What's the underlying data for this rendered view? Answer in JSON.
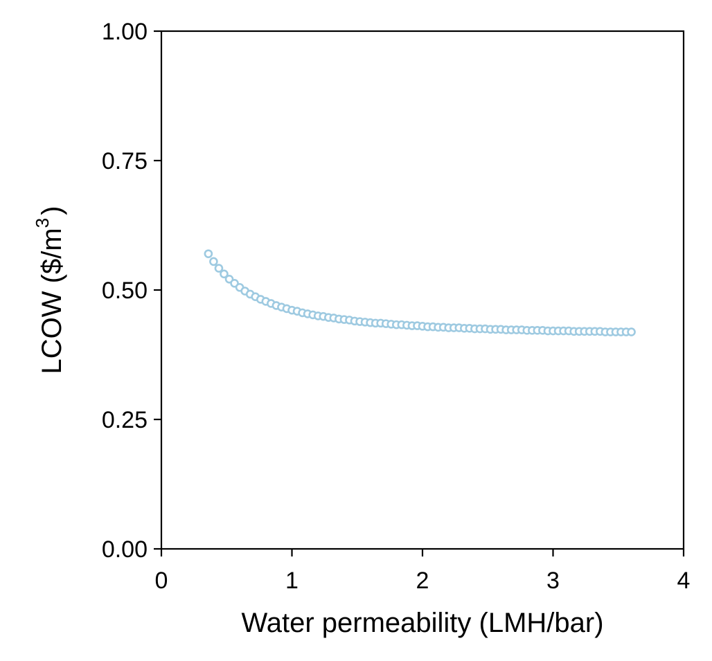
{
  "chart_data": {
    "type": "scatter",
    "xlabel": "Water permeability (LMH/bar)",
    "ylabel_main": "LCOW ($/m",
    "ylabel_sup": "3",
    "ylabel_end": ")",
    "xlim": [
      0,
      4
    ],
    "ylim": [
      0,
      1
    ],
    "xticks": [
      0,
      1,
      2,
      3,
      4
    ],
    "xtick_labels": [
      "0",
      "1",
      "2",
      "3",
      "4"
    ],
    "yticks": [
      0,
      0.25,
      0.5,
      0.75,
      1.0
    ],
    "ytick_labels": [
      "0.00",
      "0.25",
      "0.50",
      "0.75",
      "1.00"
    ],
    "grid": false,
    "marker": "hollow-circle",
    "color": "#9ecae1",
    "series": [
      {
        "x": [
          0.36,
          0.4,
          0.44,
          0.48,
          0.52,
          0.56,
          0.6,
          0.64,
          0.68,
          0.72,
          0.76,
          0.8,
          0.84,
          0.88,
          0.92,
          0.96,
          1.0,
          1.04,
          1.08,
          1.12,
          1.16,
          1.2,
          1.24,
          1.28,
          1.32,
          1.36,
          1.4,
          1.44,
          1.48,
          1.52,
          1.56,
          1.6,
          1.64,
          1.68,
          1.72,
          1.76,
          1.8,
          1.84,
          1.88,
          1.92,
          1.96,
          2.0,
          2.04,
          2.08,
          2.12,
          2.16,
          2.2,
          2.24,
          2.28,
          2.32,
          2.36,
          2.4,
          2.44,
          2.48,
          2.52,
          2.56,
          2.6,
          2.64,
          2.68,
          2.72,
          2.76,
          2.8,
          2.84,
          2.88,
          2.92,
          2.96,
          3.0,
          3.04,
          3.08,
          3.12,
          3.16,
          3.2,
          3.24,
          3.28,
          3.32,
          3.36,
          3.4,
          3.44,
          3.48,
          3.52,
          3.56,
          3.6
        ],
        "y": [
          0.57,
          0.555,
          0.542,
          0.531,
          0.521,
          0.513,
          0.505,
          0.498,
          0.492,
          0.487,
          0.482,
          0.478,
          0.474,
          0.47,
          0.467,
          0.464,
          0.461,
          0.459,
          0.456,
          0.454,
          0.452,
          0.45,
          0.449,
          0.447,
          0.446,
          0.444,
          0.443,
          0.442,
          0.44,
          0.439,
          0.438,
          0.437,
          0.436,
          0.436,
          0.435,
          0.434,
          0.433,
          0.433,
          0.432,
          0.431,
          0.431,
          0.43,
          0.429,
          0.429,
          0.428,
          0.428,
          0.427,
          0.427,
          0.427,
          0.426,
          0.426,
          0.425,
          0.425,
          0.425,
          0.424,
          0.424,
          0.424,
          0.423,
          0.423,
          0.423,
          0.423,
          0.422,
          0.422,
          0.422,
          0.422,
          0.421,
          0.421,
          0.421,
          0.421,
          0.421,
          0.42,
          0.42,
          0.42,
          0.42,
          0.42,
          0.42,
          0.419,
          0.419,
          0.419,
          0.419,
          0.419,
          0.419
        ]
      }
    ]
  }
}
